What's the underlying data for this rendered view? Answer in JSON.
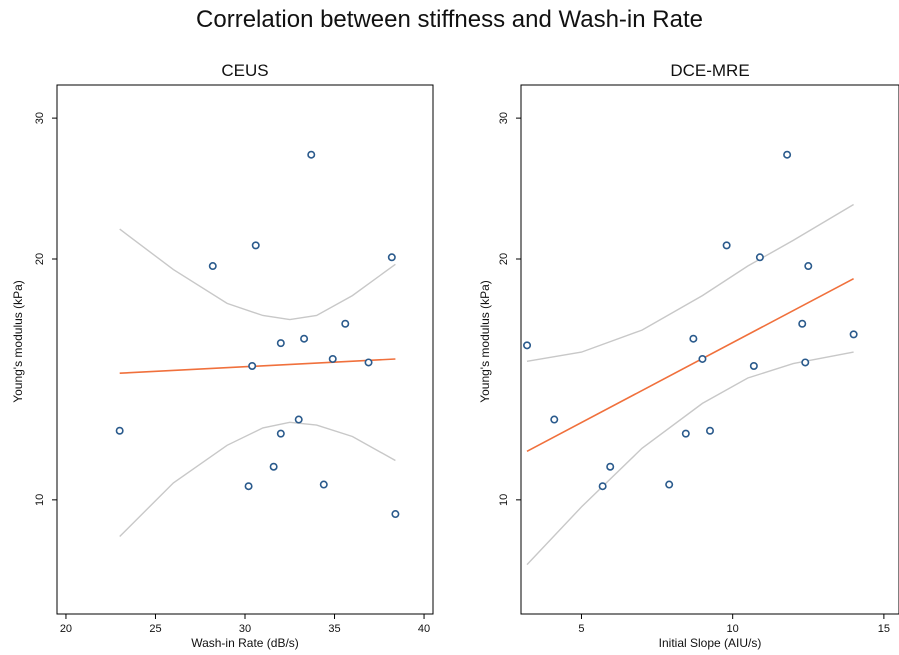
{
  "title": "Correlation between stiffness and Wash-in Rate",
  "colors": {
    "point": "#2a5a8c",
    "fit": "#f0703c",
    "ci": "#c8c8c8",
    "axis": "#000000"
  },
  "chart_data": [
    {
      "type": "scatter",
      "title": "CEUS",
      "xlabel": "Wash-in Rate (dB/s)",
      "ylabel": "Young's modulus (kPa)",
      "xlim": [
        19.5,
        40.5
      ],
      "ylim": [
        7.2,
        33
      ],
      "y_scale": "log",
      "xticks": [
        20,
        25,
        30,
        35,
        40
      ],
      "yticks": [
        10,
        20,
        30
      ],
      "points": [
        {
          "x": 23.0,
          "y": 12.2
        },
        {
          "x": 28.2,
          "y": 19.6
        },
        {
          "x": 30.2,
          "y": 10.4
        },
        {
          "x": 30.4,
          "y": 14.7
        },
        {
          "x": 30.6,
          "y": 20.8
        },
        {
          "x": 31.6,
          "y": 11.0
        },
        {
          "x": 32.0,
          "y": 15.7
        },
        {
          "x": 32.0,
          "y": 12.1
        },
        {
          "x": 33.0,
          "y": 12.6
        },
        {
          "x": 33.3,
          "y": 15.9
        },
        {
          "x": 33.7,
          "y": 27.0
        },
        {
          "x": 34.4,
          "y": 10.45
        },
        {
          "x": 34.9,
          "y": 15.0
        },
        {
          "x": 35.6,
          "y": 16.6
        },
        {
          "x": 36.9,
          "y": 14.85
        },
        {
          "x": 38.2,
          "y": 20.1
        },
        {
          "x": 38.4,
          "y": 9.6
        }
      ],
      "fit_line": {
        "x": [
          23.0,
          38.4
        ],
        "y": [
          14.4,
          15.0
        ]
      },
      "ci_upper": {
        "x": [
          23.0,
          26.0,
          29.0,
          31.0,
          32.5,
          34.0,
          36.0,
          38.4
        ],
        "y": [
          21.8,
          19.4,
          17.6,
          17.0,
          16.8,
          17.0,
          18.0,
          19.7
        ]
      },
      "ci_lower": {
        "x": [
          23.0,
          26.0,
          29.0,
          31.0,
          32.5,
          34.0,
          36.0,
          38.4
        ],
        "y": [
          9.0,
          10.5,
          11.7,
          12.3,
          12.5,
          12.4,
          12.0,
          11.2
        ]
      }
    },
    {
      "type": "scatter",
      "title": "DCE-MRE",
      "xlabel": "Initial Slope (AIU/s)",
      "ylabel": "Young's modulus (kPa)",
      "xlim": [
        3.0,
        15.5
      ],
      "ylim": [
        7.2,
        33
      ],
      "y_scale": "log",
      "xticks": [
        5,
        10,
        15
      ],
      "yticks": [
        10,
        20,
        30
      ],
      "points": [
        {
          "x": 3.2,
          "y": 15.6
        },
        {
          "x": 4.1,
          "y": 12.6
        },
        {
          "x": 5.7,
          "y": 10.4
        },
        {
          "x": 5.95,
          "y": 11.0
        },
        {
          "x": 7.9,
          "y": 10.45
        },
        {
          "x": 8.45,
          "y": 12.1
        },
        {
          "x": 8.7,
          "y": 15.9
        },
        {
          "x": 9.0,
          "y": 15.0
        },
        {
          "x": 9.25,
          "y": 12.2
        },
        {
          "x": 9.8,
          "y": 20.8
        },
        {
          "x": 10.7,
          "y": 14.7
        },
        {
          "x": 10.9,
          "y": 20.1
        },
        {
          "x": 11.8,
          "y": 27.0
        },
        {
          "x": 12.3,
          "y": 16.6
        },
        {
          "x": 12.4,
          "y": 14.85
        },
        {
          "x": 12.5,
          "y": 19.6
        },
        {
          "x": 14.0,
          "y": 16.1
        }
      ],
      "fit_line": {
        "x": [
          3.2,
          14.0
        ],
        "y": [
          11.5,
          18.9
        ]
      },
      "ci_upper": {
        "x": [
          3.2,
          5.0,
          7.0,
          9.0,
          10.5,
          12.0,
          14.0
        ],
        "y": [
          14.9,
          15.3,
          16.3,
          18.0,
          19.6,
          21.1,
          23.4
        ]
      },
      "ci_lower": {
        "x": [
          3.2,
          5.0,
          7.0,
          9.0,
          10.5,
          12.0,
          14.0
        ],
        "y": [
          8.3,
          9.8,
          11.6,
          13.2,
          14.2,
          14.8,
          15.3
        ]
      }
    }
  ]
}
